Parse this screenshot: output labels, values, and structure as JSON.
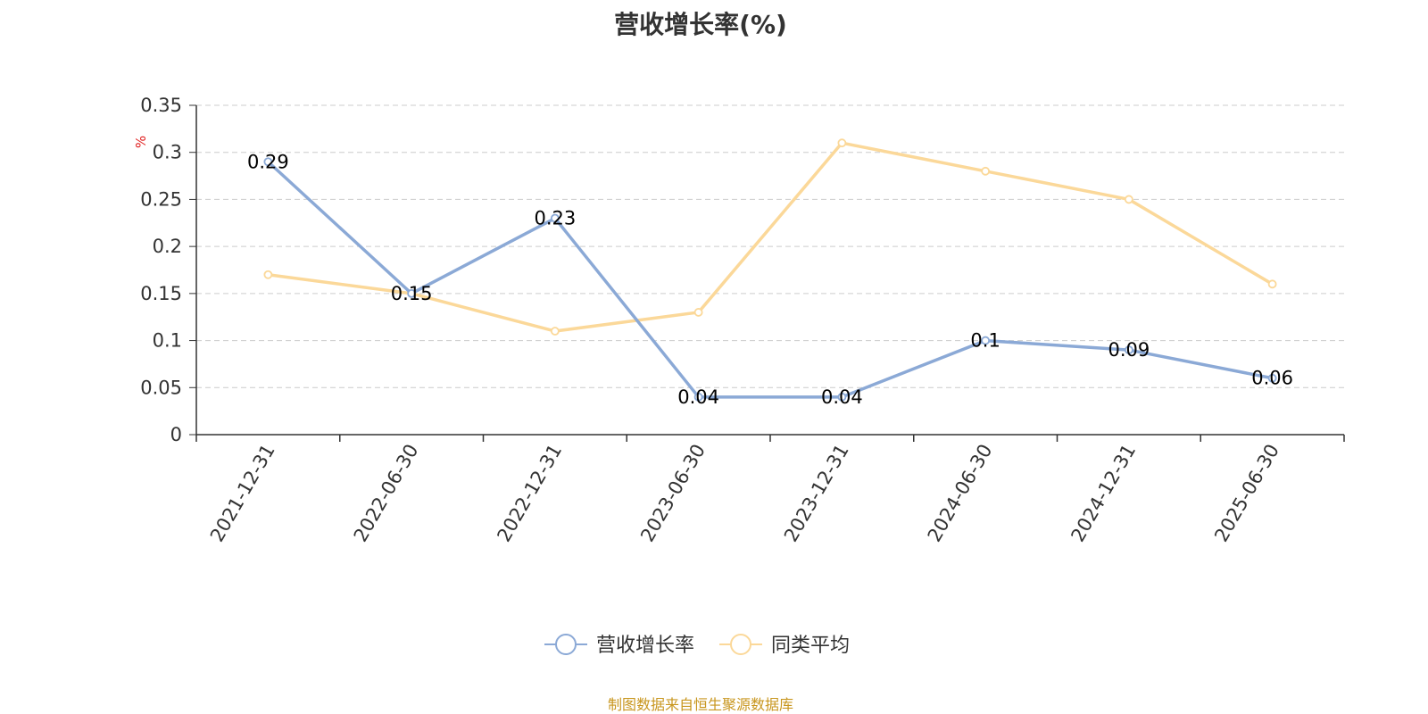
{
  "chart_data": {
    "type": "line",
    "title": "营收增长率(%)",
    "ylabel": "%",
    "xlabel": "",
    "ylim": [
      0,
      0.35
    ],
    "yticks": [
      "0",
      "0.05",
      "0.1",
      "0.15",
      "0.2",
      "0.25",
      "0.3",
      "0.35"
    ],
    "categories": [
      "2021-12-31",
      "2022-06-30",
      "2022-12-31",
      "2023-06-30",
      "2023-12-31",
      "2024-06-30",
      "2024-12-31",
      "2025-06-30"
    ],
    "grid": true,
    "legend_position": "bottom-center",
    "series": [
      {
        "name": "营收增长率",
        "values": [
          0.29,
          0.15,
          0.23,
          0.04,
          0.04,
          0.1,
          0.09,
          0.06
        ],
        "labels": [
          "0.29",
          "0.15",
          "0.23",
          "0.04",
          "0.04",
          "0.1",
          "0.09",
          "0.06"
        ],
        "color": "#8ba9d6"
      },
      {
        "name": "同类平均",
        "values": [
          0.17,
          0.15,
          0.11,
          0.13,
          0.31,
          0.28,
          0.25,
          0.16
        ],
        "color": "#fbd899"
      }
    ]
  },
  "source": "制图数据来自恒生聚源数据库",
  "colors": {
    "axis": "#333333",
    "grid": "#cccccc",
    "ylabel": "#e02020",
    "source": "#c8961e"
  }
}
